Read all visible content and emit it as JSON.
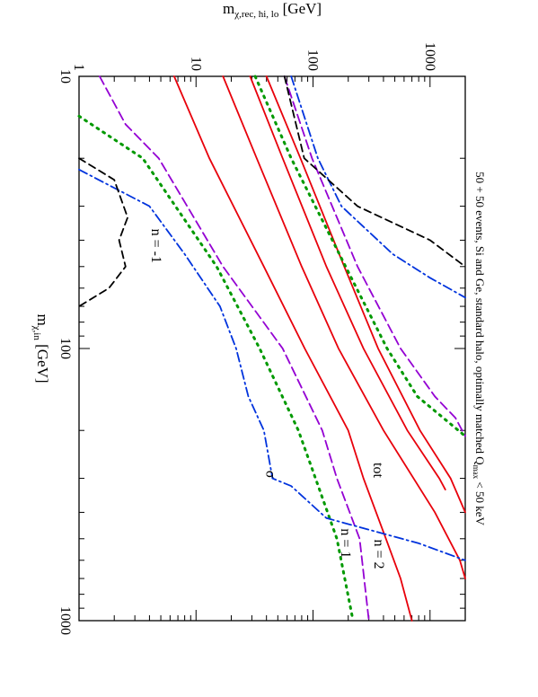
{
  "chart_data": {
    "type": "line",
    "orientation": "rotated-90-cw",
    "title": "50 + 50 events, Si and Ge, standard halo, optimally matched Q",
    "title_sub": "max",
    "title_tail": " < 50 keV",
    "xlabel": "m",
    "xlabel_sub": "χ,in",
    "xlabel_unit": " [GeV]",
    "ylabel": "m",
    "ylabel_sub": "χ,rec, hi, lo",
    "ylabel_unit": " [GeV]",
    "x_scale": "log",
    "y_scale": "log",
    "xlim": [
      10,
      1000
    ],
    "ylim": [
      1,
      2000
    ],
    "x_ticks": [
      {
        "v": 10,
        "label": "10"
      },
      {
        "v": 100,
        "label": "100"
      },
      {
        "v": 1000,
        "label": "1000"
      }
    ],
    "y_ticks": [
      {
        "v": 1,
        "label": "1"
      },
      {
        "v": 10,
        "label": "10"
      },
      {
        "v": 100,
        "label": "100"
      },
      {
        "v": 1000,
        "label": "1000"
      }
    ],
    "grid": false,
    "series": [
      {
        "id": "tot-hi",
        "color": "#e8000b",
        "dash": "",
        "points": [
          [
            10,
            40
          ],
          [
            20,
            78
          ],
          [
            50,
            185
          ],
          [
            100,
            360
          ],
          [
            200,
            820
          ],
          [
            300,
            1500
          ],
          [
            400,
            2000
          ]
        ]
      },
      {
        "id": "tot-lo",
        "color": "#e8000b",
        "dash": "",
        "points": [
          [
            10,
            6.5
          ],
          [
            20,
            13
          ],
          [
            50,
            38
          ],
          [
            100,
            85
          ],
          [
            200,
            200
          ],
          [
            300,
            270
          ],
          [
            500,
            420
          ],
          [
            700,
            560
          ],
          [
            1000,
            700
          ]
        ]
      },
      {
        "id": "tot-hi2",
        "color": "#e8000b",
        "dash": "",
        "points": [
          [
            10,
            29
          ],
          [
            20,
            55
          ],
          [
            50,
            130
          ],
          [
            100,
            270
          ],
          [
            200,
            640
          ],
          [
            300,
            1200
          ],
          [
            330,
            1350
          ]
        ]
      },
      {
        "id": "tot-lo2",
        "color": "#e8000b",
        "dash": "",
        "points": [
          [
            10,
            17
          ],
          [
            20,
            33
          ],
          [
            50,
            80
          ],
          [
            100,
            165
          ],
          [
            200,
            400
          ],
          [
            400,
            1100
          ],
          [
            600,
            1800
          ],
          [
            700,
            2000
          ]
        ]
      },
      {
        "id": "n2-hi",
        "color": "#9400d3",
        "dash": "10,5",
        "points": [
          [
            10,
            57
          ],
          [
            20,
            98
          ],
          [
            50,
            240
          ],
          [
            100,
            560
          ],
          [
            150,
            1100
          ],
          [
            180,
            1650
          ],
          [
            210,
            2000
          ]
        ]
      },
      {
        "id": "n2-lo",
        "color": "#9400d3",
        "dash": "10,5",
        "points": [
          [
            10,
            1.5
          ],
          [
            15,
            2.5
          ],
          [
            20,
            4.8
          ],
          [
            50,
            17
          ],
          [
            100,
            55
          ],
          [
            200,
            120
          ],
          [
            300,
            160
          ],
          [
            500,
            250
          ],
          [
            1000,
            300
          ]
        ]
      },
      {
        "id": "n1-hi",
        "color": "#009900",
        "dash": "2,6",
        "points": [
          [
            10,
            32
          ],
          [
            20,
            65
          ],
          [
            50,
            190
          ],
          [
            100,
            430
          ],
          [
            150,
            780
          ],
          [
            180,
            1300
          ],
          [
            210,
            2000
          ]
        ]
      },
      {
        "id": "n1-lo",
        "color": "#009900",
        "dash": "2,6",
        "points": [
          [
            14,
            1
          ],
          [
            20,
            3.5
          ],
          [
            50,
            15
          ],
          [
            100,
            35
          ],
          [
            200,
            75
          ],
          [
            300,
            105
          ],
          [
            500,
            160
          ],
          [
            1000,
            220
          ]
        ]
      },
      {
        "id": "sigma-hi",
        "color": "#0033dd",
        "dash": "10,4,2,4",
        "points": [
          [
            10,
            65
          ],
          [
            20,
            110
          ],
          [
            30,
            175
          ],
          [
            45,
            480
          ],
          [
            55,
            1000
          ],
          [
            65,
            2000
          ]
        ]
      },
      {
        "id": "sigma-lo",
        "color": "#0033dd",
        "dash": "10,4,2,4",
        "points": [
          [
            22,
            1
          ],
          [
            30,
            4
          ],
          [
            45,
            8
          ],
          [
            70,
            16
          ],
          [
            100,
            22
          ],
          [
            150,
            28
          ],
          [
            200,
            38
          ],
          [
            300,
            45
          ],
          [
            320,
            65
          ],
          [
            420,
            130
          ],
          [
            520,
            800
          ],
          [
            600,
            2000
          ]
        ]
      },
      {
        "id": "nm1-hi",
        "color": "#000000",
        "dash": "8,5",
        "points": [
          [
            10,
            57
          ],
          [
            20,
            84
          ],
          [
            30,
            240
          ],
          [
            40,
            1000
          ],
          [
            50,
            2000
          ]
        ]
      },
      {
        "id": "nm1-lo",
        "color": "#000000",
        "dash": "8,5",
        "points": [
          [
            20,
            1
          ],
          [
            24,
            2
          ],
          [
            33,
            2.6
          ],
          [
            40,
            2.2
          ],
          [
            50,
            2.5
          ],
          [
            60,
            1.8
          ],
          [
            70,
            1
          ]
        ]
      }
    ],
    "annotations": [
      {
        "text": "tot",
        "color": "#e8000b",
        "x": 280,
        "y": 330
      },
      {
        "text": "n = 2",
        "color": "#9400d3",
        "x": 570,
        "y": 335
      },
      {
        "text": "n = 1",
        "color": "#009900",
        "x": 520,
        "y": 175
      },
      {
        "text": "σ",
        "color": "#0033dd",
        "x": 290,
        "y": 40
      },
      {
        "text": "n = -1",
        "color": "#000000",
        "x": 42,
        "y": 4.2
      }
    ]
  }
}
